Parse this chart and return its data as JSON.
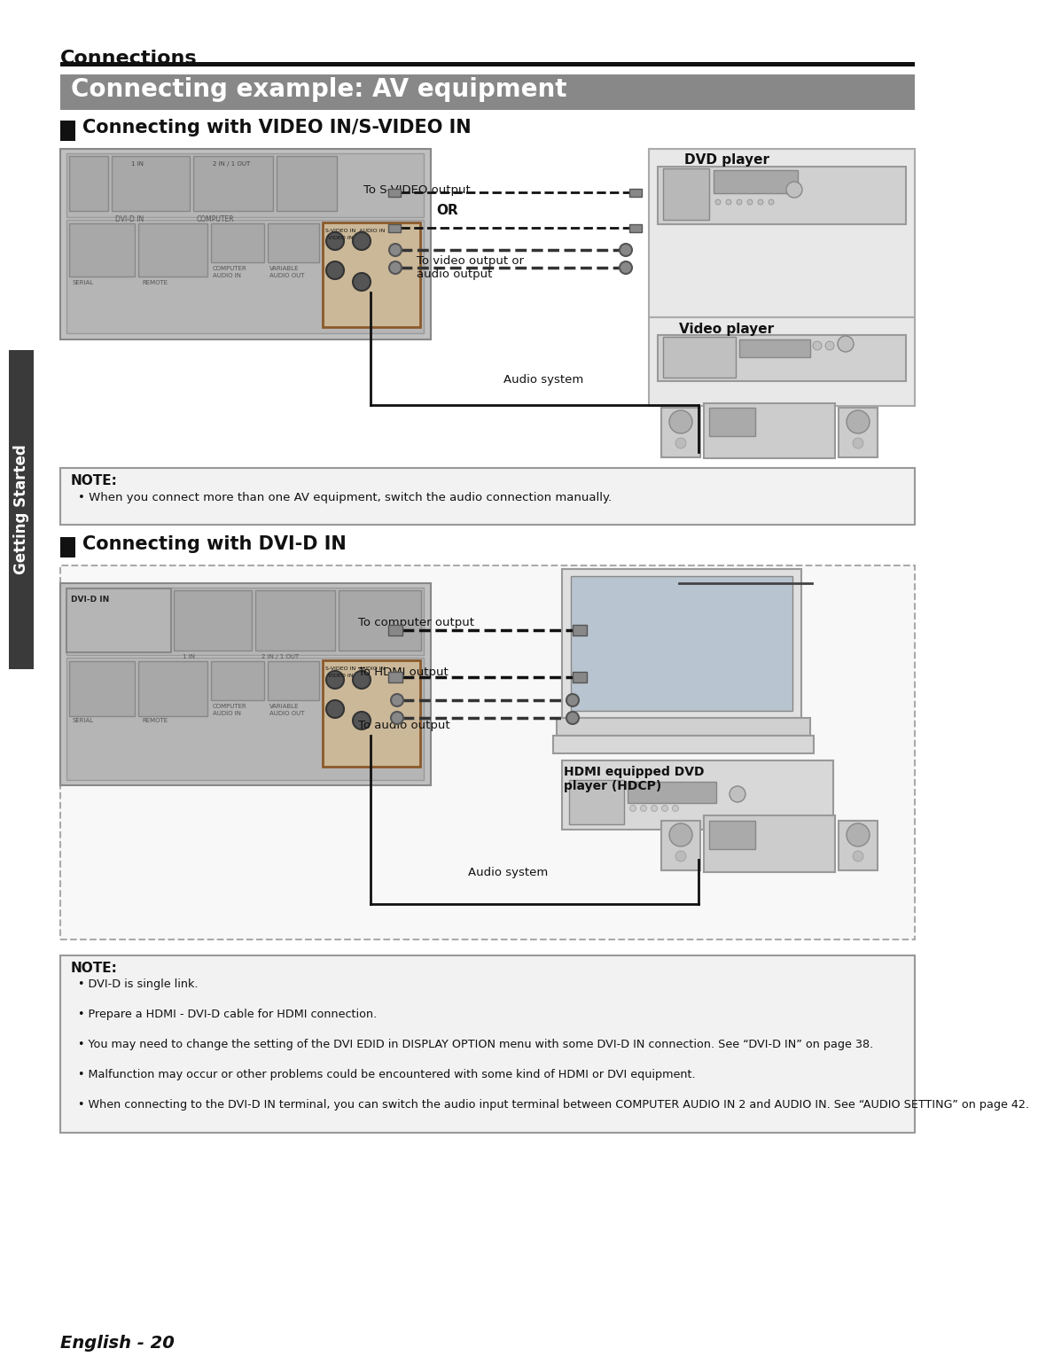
{
  "page_bg": "#ffffff",
  "top_label": "Connections",
  "main_title": "Connecting example: AV equipment",
  "main_title_bg": "#888888",
  "section1_title": "Connecting with VIDEO IN/S-VIDEO IN",
  "section2_title": "Connecting with DVI-D IN",
  "note1_title": "NOTE:",
  "note1_text": "• When you connect more than one AV equipment, switch the audio connection manually.",
  "note2_lines": [
    "• DVI-D is single link.",
    "• Prepare a HDMI - DVI-D cable for HDMI connection.",
    "• You may need to change the setting of the DVI EDID in DISPLAY OPTION menu with some DVI-D IN connection. See “DVI-D IN” on page 38.",
    "• Malfunction may occur or other problems could be encountered with some kind of HDMI or DVI equipment.",
    "• When connecting to the DVI-D IN terminal, you can switch the audio input terminal between COMPUTER AUDIO IN 2 and AUDIO IN. See “AUDIO SETTING” on page 42."
  ],
  "footer": "English - 20",
  "dvd_label": "DVD player",
  "video_player_label": "Video player",
  "audio_system_label": "Audio system",
  "svideo_label": "To S-VIDEO output",
  "or_label": "OR",
  "video_audio_label": "To video output or\naudio output",
  "computer_output_label": "To computer output",
  "hdmi_output_label": "To HDMI output",
  "audio_output_label": "To audio output",
  "hdmi_dvd_label": "HDMI equipped DVD\nplayer (HDCP)",
  "sidebar_text": "Getting Started",
  "sidebar_bg": "#3a3a3a"
}
